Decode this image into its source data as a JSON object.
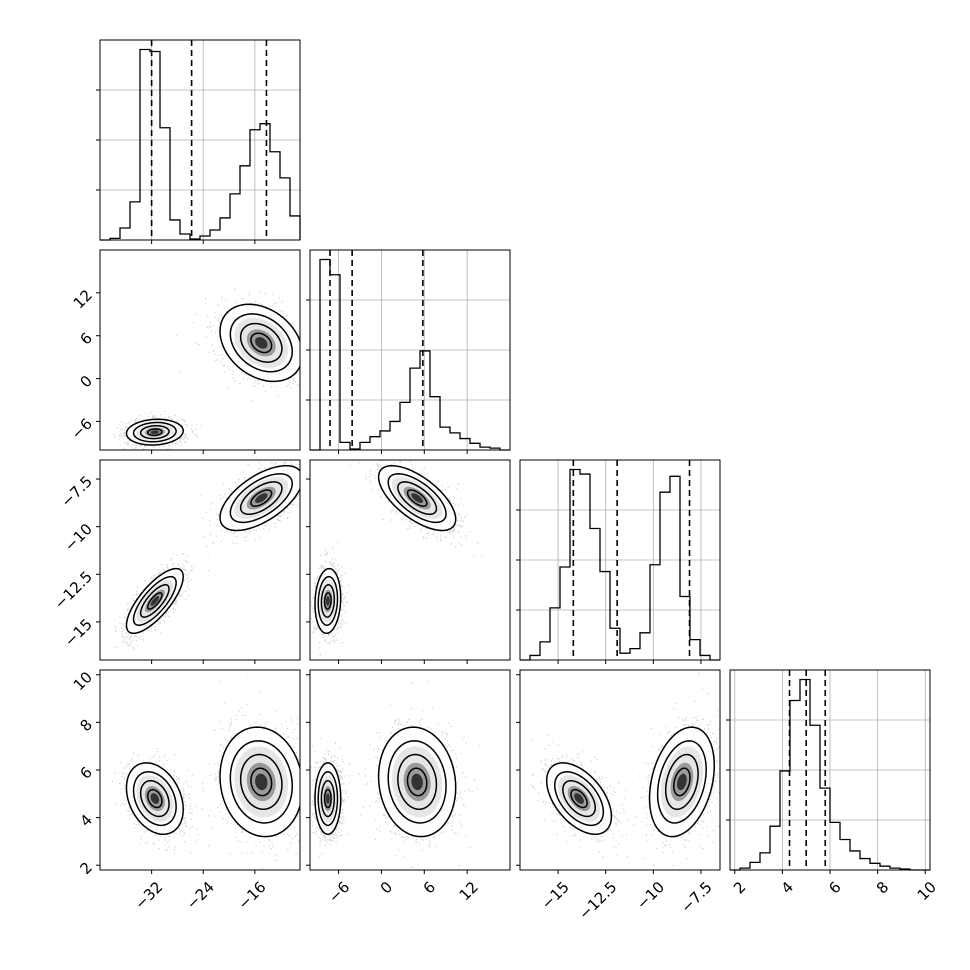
{
  "chart_data": {
    "type": "corner",
    "title": "",
    "parameters": [
      "",
      "",
      "",
      ""
    ],
    "grid": true,
    "point_color": "#000000",
    "line_color": "#000000",
    "diagonal": [
      {
        "range": [
          -40,
          -9
        ],
        "ticks": [
          -32,
          -24,
          -16
        ],
        "quantile_lines": [
          -32,
          -25.8,
          -14.2
        ],
        "hist": {
          "edges": [
            -40,
            -38.45,
            -36.9,
            -35.35,
            -33.8,
            -32.25,
            -30.7,
            -29.15,
            -27.6,
            -26.05,
            -24.5,
            -22.95,
            -21.4,
            -19.85,
            -18.3,
            -16.75,
            -15.2,
            -13.65,
            -12.1,
            -10.55,
            -9
          ],
          "counts": [
            0,
            8,
            60,
            190,
            950,
            940,
            560,
            100,
            30,
            5,
            20,
            50,
            110,
            230,
            370,
            550,
            580,
            440,
            310,
            120
          ]
        }
      },
      {
        "range": [
          -10,
          18
        ],
        "ticks": [
          -6,
          0,
          6,
          12
        ],
        "quantile_lines": [
          -7.2,
          -4.1,
          5.8
        ],
        "hist": {
          "edges": [
            -10,
            -8.6,
            -7.2,
            -5.8,
            -4.4,
            -3,
            -1.6,
            -0.2,
            1.2,
            2.6,
            4,
            5.4,
            6.8,
            8.2,
            9.6,
            11,
            12.4,
            13.8,
            15.2,
            16.6,
            18
          ],
          "counts": [
            0,
            1000,
            920,
            40,
            5,
            40,
            70,
            100,
            150,
            250,
            430,
            520,
            280,
            120,
            90,
            60,
            35,
            15,
            10,
            0
          ]
        }
      },
      {
        "range": [
          -17,
          -6.5
        ],
        "ticks": [
          -15.0,
          -12.5,
          -10.0,
          -7.5
        ],
        "quantile_lines": [
          -14.2,
          -11.9,
          -8.1
        ],
        "hist": {
          "edges": [
            -17,
            -16.475,
            -15.95,
            -15.425,
            -14.9,
            -14.375,
            -13.85,
            -13.325,
            -12.8,
            -12.275,
            -11.75,
            -11.225,
            -10.7,
            -10.175,
            -9.65,
            -9.125,
            -8.6,
            -8.075,
            -7.55,
            -7.025,
            -6.5
          ],
          "counts": [
            0,
            20,
            80,
            230,
            410,
            840,
            820,
            580,
            390,
            140,
            30,
            50,
            120,
            420,
            740,
            810,
            280,
            90,
            20,
            0
          ]
        }
      },
      {
        "range": [
          1.8,
          10.2
        ],
        "ticks": [
          2,
          4,
          6,
          8,
          10
        ],
        "quantile_lines": [
          4.3,
          5.0,
          5.8
        ],
        "hist": {
          "edges": [
            1.8,
            2.22,
            2.64,
            3.06,
            3.48,
            3.9,
            4.32,
            4.74,
            5.16,
            5.58,
            6,
            6.42,
            6.84,
            7.26,
            7.68,
            8.1,
            8.52,
            8.94,
            9.36,
            9.78,
            10.2
          ],
          "counts": [
            0,
            10,
            40,
            90,
            230,
            520,
            890,
            1000,
            760,
            430,
            250,
            160,
            100,
            60,
            35,
            20,
            10,
            5,
            0,
            0
          ]
        }
      }
    ],
    "pairs": [
      {
        "x": 0,
        "y": 1,
        "components": [
          {
            "mean": [
              -31.5,
              -7.5
            ],
            "std": [
              2.2,
              0.9
            ],
            "rho": 0.1,
            "weight": 0.5
          },
          {
            "mean": [
              -15.0,
              5.0
            ],
            "std": [
              3.2,
              2.7
            ],
            "rho": -0.3,
            "weight": 0.5
          }
        ]
      },
      {
        "x": 0,
        "y": 2,
        "components": [
          {
            "mean": [
              -31.5,
              -13.9
            ],
            "std": [
              2.2,
              0.85
            ],
            "rho": 0.75,
            "weight": 0.5
          },
          {
            "mean": [
              -15.0,
              -8.5
            ],
            "std": [
              3.2,
              0.85
            ],
            "rho": 0.6,
            "weight": 0.5
          }
        ]
      },
      {
        "x": 1,
        "y": 2,
        "components": [
          {
            "mean": [
              -7.5,
              -13.9
            ],
            "std": [
              0.9,
              0.85
            ],
            "rho": 0.1,
            "weight": 0.5
          },
          {
            "mean": [
              5.0,
              -8.5
            ],
            "std": [
              2.7,
              0.85
            ],
            "rho": -0.65,
            "weight": 0.5
          }
        ]
      },
      {
        "x": 0,
        "y": 3,
        "components": [
          {
            "mean": [
              -31.5,
              4.8
            ],
            "std": [
              2.2,
              0.75
            ],
            "rho": -0.3,
            "weight": 0.5
          },
          {
            "mean": [
              -15.0,
              5.5
            ],
            "std": [
              3.2,
              1.15
            ],
            "rho": -0.1,
            "weight": 0.5
          }
        ]
      },
      {
        "x": 1,
        "y": 3,
        "components": [
          {
            "mean": [
              -7.5,
              4.8
            ],
            "std": [
              0.9,
              0.75
            ],
            "rho": 0.0,
            "weight": 0.5
          },
          {
            "mean": [
              5.0,
              5.5
            ],
            "std": [
              2.7,
              1.15
            ],
            "rho": -0.1,
            "weight": 0.5
          }
        ]
      },
      {
        "x": 2,
        "y": 3,
        "components": [
          {
            "mean": [
              -13.9,
              4.8
            ],
            "std": [
              0.85,
              0.75
            ],
            "rho": -0.5,
            "weight": 0.5
          },
          {
            "mean": [
              -8.5,
              5.5
            ],
            "std": [
              0.85,
              1.15
            ],
            "rho": 0.3,
            "weight": 0.5
          }
        ]
      }
    ]
  }
}
